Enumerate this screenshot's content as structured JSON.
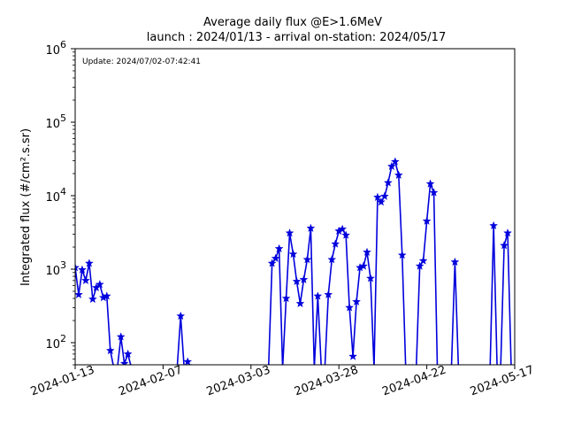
{
  "chart_data": {
    "type": "line",
    "title_lines": [
      "Average daily flux @E>1.6MeV",
      "launch : 2024/01/13 - arrival on-station: 2024/05/17"
    ],
    "annotation": "Update: 2024/07/02-07:42:41",
    "xlabel": "",
    "ylabel": "Integrated flux (#/cm².s.sr)",
    "y_scale": "log",
    "ylim": [
      50,
      1000000
    ],
    "y_ticks": [
      {
        "value": 100,
        "base": "10",
        "exp": "2"
      },
      {
        "value": 1000,
        "base": "10",
        "exp": "3"
      },
      {
        "value": 10000,
        "base": "10",
        "exp": "4"
      },
      {
        "value": 100000,
        "base": "10",
        "exp": "5"
      },
      {
        "value": 1000000,
        "base": "10",
        "exp": "6"
      }
    ],
    "xlim": [
      "2024-01-13",
      "2024-05-17"
    ],
    "x_ticks": [
      "2024-01-13",
      "2024-02-07",
      "2024-03-03",
      "2024-03-28",
      "2024-04-22",
      "2024-05-17"
    ],
    "grid": false,
    "series_color": "#0000dd",
    "marker": "star",
    "series": [
      {
        "points": [
          [
            "2024-01-13",
            1050
          ],
          [
            "2024-01-14",
            450
          ],
          [
            "2024-01-15",
            980
          ],
          [
            "2024-01-16",
            700
          ],
          [
            "2024-01-17",
            1200
          ],
          [
            "2024-01-18",
            390
          ],
          [
            "2024-01-19",
            560
          ],
          [
            "2024-01-20",
            620
          ],
          [
            "2024-01-21",
            410
          ],
          [
            "2024-01-22",
            430
          ],
          [
            "2024-01-23",
            78
          ],
          [
            "2024-01-24",
            45
          ],
          [
            "2024-01-25",
            45
          ],
          [
            "2024-01-26",
            120
          ],
          [
            "2024-01-27",
            52
          ],
          [
            "2024-01-28",
            70
          ],
          [
            "2024-01-29",
            45
          ],
          [
            "2024-02-11",
            45
          ],
          [
            "2024-02-12",
            230
          ],
          [
            "2024-02-13",
            45
          ],
          [
            "2024-02-14",
            55
          ],
          [
            "2024-02-15",
            45
          ],
          [
            "2024-03-08",
            45
          ],
          [
            "2024-03-09",
            1200
          ],
          [
            "2024-03-10",
            1400
          ],
          [
            "2024-03-11",
            1900
          ],
          [
            "2024-03-12",
            45
          ],
          [
            "2024-03-13",
            400
          ],
          [
            "2024-03-14",
            3100
          ],
          [
            "2024-03-15",
            1600
          ],
          [
            "2024-03-16",
            680
          ],
          [
            "2024-03-17",
            340
          ],
          [
            "2024-03-18",
            720
          ],
          [
            "2024-03-19",
            1350
          ],
          [
            "2024-03-20",
            3600
          ],
          [
            "2024-03-21",
            45
          ],
          [
            "2024-03-22",
            430
          ],
          [
            "2024-03-23",
            45
          ],
          [
            "2024-03-24",
            45
          ],
          [
            "2024-03-25",
            450
          ],
          [
            "2024-03-26",
            1350
          ],
          [
            "2024-03-27",
            2200
          ],
          [
            "2024-03-28",
            3300
          ],
          [
            "2024-03-29",
            3500
          ],
          [
            "2024-03-30",
            2900
          ],
          [
            "2024-03-31",
            300
          ],
          [
            "2024-04-01",
            65
          ],
          [
            "2024-04-02",
            360
          ],
          [
            "2024-04-03",
            1050
          ],
          [
            "2024-04-04",
            1100
          ],
          [
            "2024-04-05",
            1700
          ],
          [
            "2024-04-06",
            750
          ],
          [
            "2024-04-07",
            45
          ],
          [
            "2024-04-08",
            9500
          ],
          [
            "2024-04-09",
            8200
          ],
          [
            "2024-04-10",
            9800
          ],
          [
            "2024-04-11",
            15000
          ],
          [
            "2024-04-12",
            25000
          ],
          [
            "2024-04-13",
            29000
          ],
          [
            "2024-04-14",
            19000
          ],
          [
            "2024-04-15",
            1550
          ],
          [
            "2024-04-16",
            45
          ],
          [
            "2024-04-17",
            45
          ],
          [
            "2024-04-18",
            45
          ],
          [
            "2024-04-19",
            45
          ],
          [
            "2024-04-20",
            1100
          ],
          [
            "2024-04-21",
            1300
          ],
          [
            "2024-04-22",
            4500
          ],
          [
            "2024-04-23",
            14500
          ],
          [
            "2024-04-24",
            11000
          ],
          [
            "2024-04-25",
            45
          ],
          [
            "2024-04-29",
            45
          ],
          [
            "2024-04-30",
            1250
          ],
          [
            "2024-05-01",
            45
          ],
          [
            "2024-05-10",
            45
          ],
          [
            "2024-05-11",
            3900
          ],
          [
            "2024-05-12",
            45
          ],
          [
            "2024-05-13",
            45
          ],
          [
            "2024-05-14",
            2100
          ],
          [
            "2024-05-15",
            3100
          ],
          [
            "2024-05-16",
            45
          ]
        ]
      }
    ]
  }
}
